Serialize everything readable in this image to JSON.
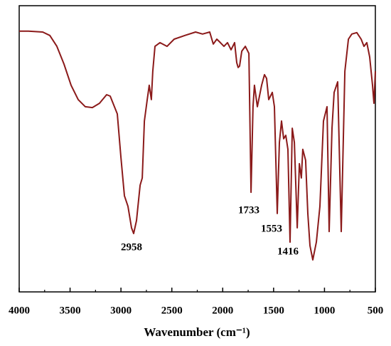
{
  "chart_data": {
    "type": "line",
    "xlabel": "Wavenumber (cm⁻¹)",
    "xlim": [
      4000,
      500
    ],
    "xticks": [
      4000,
      3500,
      3000,
      2500,
      2000,
      1500,
      1000,
      500
    ],
    "xminorticks": [
      3750,
      3250,
      2750,
      2250,
      1750,
      1250,
      750
    ],
    "ylim": [
      0,
      100
    ],
    "annotations": [
      "2958",
      "1733",
      "1553",
      "1416"
    ],
    "series": [
      {
        "color": "#8b1a1a",
        "x": [
          4000,
          3909,
          3769,
          3699,
          3630,
          3560,
          3490,
          3420,
          3350,
          3281,
          3211,
          3141,
          3106,
          3036,
          3001,
          2966,
          2931,
          2896,
          2875,
          2847,
          2812,
          2791,
          2770,
          2742,
          2722,
          2701,
          2687,
          2666,
          2617,
          2547,
          2477,
          2372,
          2267,
          2198,
          2128,
          2093,
          2058,
          2023,
          1988,
          1953,
          1918,
          1883,
          1862,
          1848,
          1834,
          1813,
          1778,
          1743,
          1722,
          1702,
          1688,
          1660,
          1618,
          1590,
          1569,
          1548,
          1513,
          1492,
          1464,
          1443,
          1422,
          1401,
          1380,
          1359,
          1338,
          1317,
          1296,
          1268,
          1247,
          1227,
          1213,
          1185,
          1164,
          1143,
          1115,
          1080,
          1045,
          1010,
          975,
          954,
          926,
          905,
          870,
          835,
          800,
          765,
          731,
          682,
          640,
          612,
          584,
          556,
          528,
          514,
          500
        ],
        "values": [
          91.1,
          91.1,
          90.8,
          89.6,
          85.8,
          79.6,
          72.2,
          67.2,
          64.7,
          64.4,
          65.9,
          68.9,
          68.4,
          62.2,
          47.3,
          33.6,
          29.9,
          22.4,
          20.4,
          24.9,
          37.3,
          39.8,
          59.7,
          67.2,
          72.2,
          67.2,
          77.1,
          85.8,
          87.1,
          85.8,
          88.3,
          89.6,
          90.8,
          90.1,
          90.8,
          86.6,
          88.3,
          87.1,
          85.8,
          87.1,
          84.6,
          87.1,
          80.1,
          78.4,
          78.9,
          84.1,
          85.8,
          83.3,
          34.8,
          64.7,
          72.2,
          64.7,
          72.2,
          75.9,
          74.6,
          67.2,
          69.7,
          64.7,
          27.4,
          52.2,
          59.7,
          53.5,
          54.7,
          49.8,
          17.4,
          57.2,
          52.2,
          22.4,
          44.8,
          39.8,
          49.8,
          46.0,
          27.4,
          16.2,
          11.2,
          17.4,
          29.9,
          59.7,
          64.7,
          21.1,
          57.2,
          69.7,
          73.4,
          21.1,
          77.1,
          88.3,
          90.1,
          90.6,
          88.3,
          85.8,
          87.1,
          82.1,
          72.2,
          65.9,
          77.1
        ]
      }
    ]
  }
}
